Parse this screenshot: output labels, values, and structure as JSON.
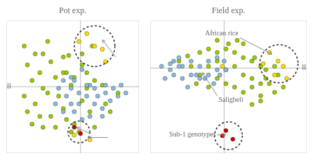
{
  "chart_data": [
    {
      "type": "scatter",
      "title": "Pot exp.",
      "xlim": [
        -0.95,
        0.75
      ],
      "ylim": [
        -0.85,
        0.85
      ],
      "tick_labels": false,
      "grid": false,
      "series": [
        {
          "color": "#99cc00",
          "x": [
            -0.72,
            -0.58,
            -0.42,
            -0.68,
            -0.52,
            -0.38,
            -0.22,
            -0.62,
            -0.48,
            -0.32,
            -0.18,
            -0.72,
            -0.58,
            -0.42,
            -0.28,
            -0.12,
            0.02,
            -0.08,
            -0.22,
            -0.38,
            -0.52,
            -0.68,
            -0.18,
            0.02,
            0.08,
            -0.08,
            0.12,
            0.32,
            0.48,
            0.08,
            0.18,
            0.28,
            -0.22,
            -0.32,
            -0.12,
            -0.02,
            0.18,
            0.38,
            -0.48,
            0.02,
            0.15,
            -0.15,
            -0.62,
            -0.48
          ],
          "values": [
            0.52,
            0.42,
            0.58,
            0.28,
            0.18,
            0.32,
            0.38,
            0.08,
            -0.02,
            0.12,
            0.18,
            -0.12,
            -0.22,
            -0.08,
            -0.12,
            0.02,
            0.28,
            0.12,
            -0.28,
            -0.38,
            -0.38,
            -0.32,
            -0.42,
            -0.18,
            -0.02,
            -0.48,
            -0.32,
            -0.22,
            -0.08,
            0.18,
            0.08,
            0.02,
            0.18,
            -0.52,
            -0.58,
            -0.58,
            -0.52,
            -0.32,
            0.42,
            0.42,
            0.52,
            0.4,
            -0.48,
            -0.52
          ]
        },
        {
          "color": "#88bbdd",
          "x": [
            -0.08,
            0.02,
            0.12,
            -0.02,
            -0.12,
            -0.18,
            -0.12,
            -0.02,
            0.08,
            0.18,
            0.22,
            0.28,
            0.32,
            0.38,
            0.42,
            0.48,
            0.32,
            0.18,
            0.08,
            -0.08,
            -0.22,
            -0.32,
            0.02,
            0.12,
            0.52,
            0.58,
            -0.12,
            -0.22,
            -0.28,
            0.28
          ],
          "values": [
            0.08,
            0.22,
            0.02,
            -0.08,
            -0.02,
            -0.12,
            -0.22,
            -0.22,
            -0.12,
            -0.22,
            -0.12,
            -0.28,
            -0.08,
            -0.18,
            -0.02,
            -0.12,
            0.02,
            -0.02,
            0.02,
            -0.32,
            -0.32,
            -0.22,
            -0.42,
            -0.38,
            0.02,
            -0.08,
            0.12,
            0.08,
            -0.02,
            -0.38
          ]
        },
        {
          "color": "#ffdd00",
          "x": [
            0.08,
            -0.02,
            0.18,
            0.28,
            0.32,
            0.12,
            -0.08
          ],
          "values": [
            0.68,
            0.58,
            0.52,
            0.48,
            0.32,
            -0.68,
            -0.62
          ]
        },
        {
          "color": "#cc0000",
          "x": [
            -0.08,
            0.0
          ],
          "values": [
            -0.52,
            -0.6
          ]
        }
      ],
      "circles": [
        {
          "center": [
            0.18,
            0.52
          ],
          "radius": 0.26
        },
        {
          "center": [
            -0.02,
            -0.58
          ],
          "radius": 0.14
        }
      ],
      "arrows": [
        {
          "from": [
            0.45,
            0.38
          ],
          "to": [
            0.28,
            0.6
          ]
        },
        {
          "from": [
            0.12,
            -0.6
          ],
          "to": [
            -0.05,
            -0.52
          ]
        },
        {
          "from": [
            0.35,
            -0.65
          ],
          "to": [
            0.1,
            -0.65
          ]
        }
      ],
      "reference_lines": {
        "x": [
          0
        ],
        "y": [
          0
        ]
      },
      "annotations": [
        {
          "text": "II",
          "x": -0.94,
          "y": 0
        }
      ]
    },
    {
      "type": "scatter",
      "title": "Field exp.",
      "xlim": [
        -0.85,
        0.95
      ],
      "ylim": [
        -0.98,
        0.55
      ],
      "tick_labels": false,
      "grid": false,
      "series": [
        {
          "color": "#99cc00",
          "x": [
            -0.52,
            -0.42,
            -0.28,
            -0.18,
            -0.08,
            0.02,
            0.12,
            0.22,
            0.32,
            0.42,
            0.48,
            -0.38,
            -0.28,
            -0.18,
            -0.08,
            0.02,
            0.12,
            0.22,
            0.32,
            0.42,
            0.48,
            0.58,
            -0.08,
            0.02,
            0.12,
            0.22,
            0.32,
            0.42,
            0.52,
            0.62,
            -0.18,
            -0.32,
            0.68,
            0.32,
            0.42,
            -0.08,
            0.05,
            0.15,
            0.35,
            0.22,
            0.58
          ],
          "values": [
            0.08,
            0.14,
            0.18,
            0.22,
            0.18,
            0.22,
            0.18,
            0.12,
            0.08,
            0.02,
            -0.02,
            0.02,
            -0.08,
            0.02,
            0.08,
            -0.02,
            0.02,
            -0.08,
            -0.12,
            -0.18,
            -0.12,
            0.02,
            -0.12,
            -0.18,
            -0.22,
            -0.28,
            -0.22,
            -0.32,
            -0.18,
            -0.08,
            -0.22,
            -0.18,
            -0.22,
            -0.42,
            -0.38,
            0.32,
            0.28,
            0.32,
            0.12,
            0.28,
            -0.28
          ]
        },
        {
          "color": "#88bbdd",
          "x": [
            -0.48,
            -0.38,
            -0.28,
            -0.48,
            -0.58,
            -0.18,
            -0.08,
            -0.28,
            -0.38,
            -0.52,
            -0.62,
            -0.12,
            -0.22,
            -0.32,
            -0.05,
            0.02,
            -0.68,
            -0.42,
            -0.18,
            -0.08,
            0.0,
            -0.52,
            -0.58,
            -0.72,
            -0.62
          ],
          "values": [
            0.02,
            -0.08,
            -0.12,
            -0.12,
            -0.08,
            -0.08,
            -0.02,
            0.02,
            0.08,
            0.02,
            -0.02,
            -0.18,
            -0.12,
            -0.08,
            -0.08,
            -0.02,
            -0.12,
            -0.22,
            0.08,
            0.12,
            0.08,
            0.12,
            0.08,
            0.02,
            0.05
          ]
        },
        {
          "color": "#ffdd00",
          "x": [
            0.52,
            0.62,
            0.68,
            0.72,
            0.58,
            -0.02,
            0.45
          ],
          "values": [
            0.18,
            0.08,
            0.02,
            -0.12,
            -0.08,
            0.02,
            0.05
          ]
        },
        {
          "color": "#cc0000",
          "x": [
            0.02,
            0.1,
            -0.02
          ],
          "values": [
            -0.72,
            -0.82,
            -0.78
          ]
        }
      ],
      "circles": [
        {
          "center": [
            0.63,
            0.05
          ],
          "radius": 0.22
        },
        {
          "center": [
            0.05,
            -0.78
          ],
          "radius": 0.16
        }
      ],
      "arrows": [
        {
          "from": [
            0.18,
            0.35
          ],
          "to": [
            0.55,
            0.16
          ],
          "label": "African rice"
        },
        {
          "from": [
            -0.08,
            -0.32
          ],
          "to": [
            -0.25,
            -0.05
          ],
          "label": "Saligbeli"
        },
        {
          "from": [
            -0.08,
            -0.77
          ],
          "to": [
            0.02,
            -0.77
          ],
          "label": "Sub-1 genotypes"
        }
      ],
      "reference_lines": {
        "x": [
          0
        ],
        "y": [
          0
        ]
      },
      "annotations": [
        {
          "text": "II",
          "x": 0.94,
          "y": 0
        }
      ]
    }
  ]
}
